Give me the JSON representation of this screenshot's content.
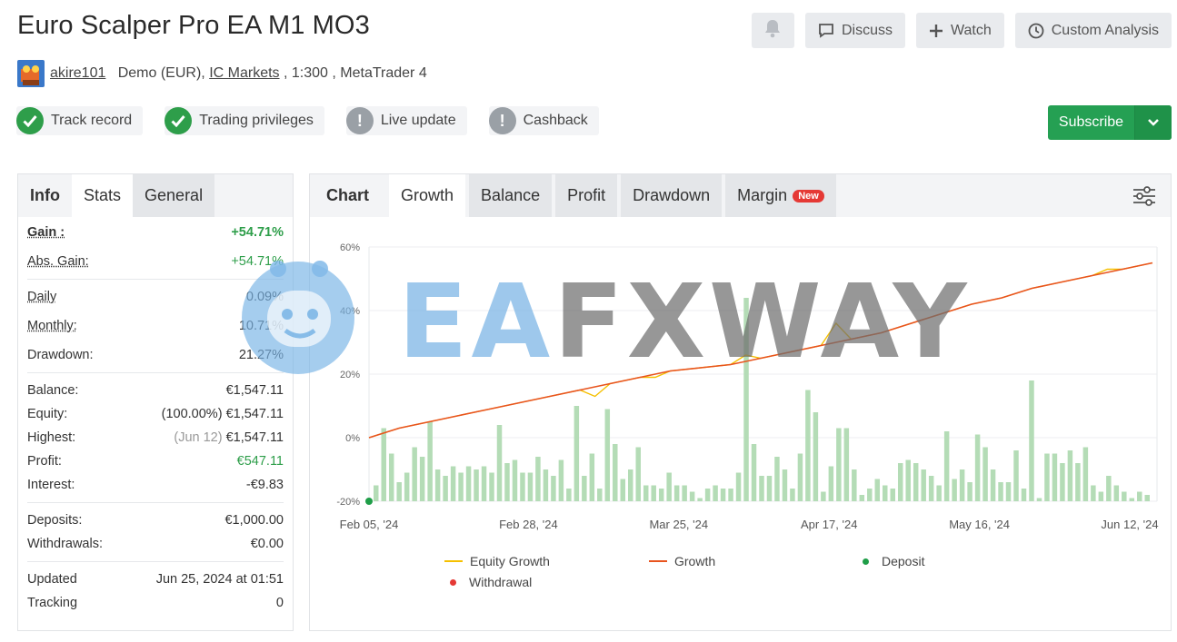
{
  "header": {
    "title": "Euro Scalper Pro EA M1 MO3",
    "username": "akire101",
    "account_type": "Demo (EUR),",
    "broker": "IC Markets",
    "leverage": ", 1:300 ,",
    "platform": "MetaTrader 4"
  },
  "actions": {
    "discuss": "Discuss",
    "watch": "Watch",
    "custom_analysis": "Custom Analysis"
  },
  "badges": [
    {
      "label": "Track record",
      "status": "ok"
    },
    {
      "label": "Trading privileges",
      "status": "ok"
    },
    {
      "label": "Live update",
      "status": "warn"
    },
    {
      "label": "Cashback",
      "status": "warn"
    }
  ],
  "subscribe": {
    "label": "Subscribe",
    "color": "#25a053"
  },
  "left_tabs": [
    "Info",
    "Stats",
    "General"
  ],
  "stats": {
    "gain_label": "Gain :",
    "gain_value": "+54.71%",
    "abs_gain_label": "Abs. Gain:",
    "abs_gain_value": "+54.71%",
    "daily_label": "Daily",
    "daily_value": "0.09%",
    "monthly_label": "Monthly:",
    "monthly_value": "10.71%",
    "drawdown_label": "Drawdown:",
    "drawdown_value": "21.27%",
    "balance_label": "Balance:",
    "balance_value": "€1,547.11",
    "equity_label": "Equity:",
    "equity_pct": "(100.00%)",
    "equity_value": "€1,547.11",
    "highest_label": "Highest:",
    "highest_date": "(Jun 12)",
    "highest_value": "€1,547.11",
    "profit_label": "Profit:",
    "profit_value": "€547.11",
    "interest_label": "Interest:",
    "interest_value": "-€9.83",
    "deposits_label": "Deposits:",
    "deposits_value": "€1,000.00",
    "withdrawals_label": "Withdrawals:",
    "withdrawals_value": "€0.00",
    "updated_label": "Updated",
    "updated_value": "Jun 25, 2024 at 01:51",
    "tracking_label": "Tracking",
    "tracking_value": "0"
  },
  "right_tabs": {
    "chart": "Chart",
    "growth": "Growth",
    "balance": "Balance",
    "profit": "Profit",
    "drawdown": "Drawdown",
    "margin": "Margin",
    "new_badge": "New"
  },
  "watermark": {
    "part1": "EA",
    "part2": "FXWAY"
  },
  "chart_data": {
    "type": "line",
    "y_ticks": [
      "60%",
      "40%",
      "20%",
      "0%",
      "-20%"
    ],
    "y_tick_values": [
      60,
      40,
      20,
      0,
      -20
    ],
    "ylim": [
      -20,
      60
    ],
    "x_tick_labels": [
      "Feb 05, '24",
      "Feb 28, '24",
      "Mar 25, '24",
      "Apr 17, '24",
      "May 16, '24",
      "Jun 12, '24"
    ],
    "series": [
      {
        "name": "Equity Growth",
        "color": "#f5c000"
      },
      {
        "name": "Growth",
        "color": "#e8541e"
      },
      {
        "name": "Deposit",
        "color": "#1f9e48"
      },
      {
        "name": "Withdrawal",
        "color": "#e53935"
      }
    ],
    "growth_values": [
      0,
      3,
      5,
      7,
      9,
      11,
      13,
      15,
      17,
      19,
      21,
      22,
      23,
      25,
      27,
      29,
      31,
      33,
      36,
      39,
      42,
      44,
      47,
      49,
      51,
      53,
      55
    ],
    "equity_dips": [
      [
        8,
        13
      ],
      [
        10,
        19
      ],
      [
        13,
        26
      ],
      [
        16,
        36
      ],
      [
        21,
        43
      ],
      [
        23,
        48
      ],
      [
        25,
        53
      ]
    ],
    "daily_bars": [
      -15,
      3,
      -5,
      -14,
      -11,
      -3,
      -6,
      5,
      -10,
      -12,
      -9,
      -11,
      -9,
      -10,
      -9,
      -11,
      4,
      -8,
      -7,
      -11,
      -11,
      -6,
      -10,
      -12,
      -7,
      -16,
      10,
      -12,
      -5,
      -16,
      9,
      -2,
      -13,
      -10,
      -3,
      -15,
      -15,
      -16,
      -11,
      -15,
      -15,
      -17,
      -19,
      -16,
      -15,
      -16,
      -16,
      -11,
      44,
      -2,
      -12,
      -12,
      -6,
      -10,
      -16,
      -5,
      15,
      8,
      -17,
      -9,
      3,
      3,
      -10,
      -18,
      -16,
      -13,
      -15,
      -16,
      -8,
      -7,
      -8,
      -10,
      -12,
      -15,
      2,
      -13,
      -10,
      -14,
      1,
      -3,
      -10,
      -14,
      -14,
      -4,
      -16,
      18,
      -19,
      -5,
      -5,
      -8,
      -4,
      -8,
      -3,
      -15,
      -17,
      -12,
      -15,
      -17,
      -19,
      -17,
      -18
    ]
  },
  "legend": {
    "equity": "Equity Growth",
    "growth": "Growth",
    "deposit": "Deposit",
    "withdrawal": "Withdrawal"
  }
}
